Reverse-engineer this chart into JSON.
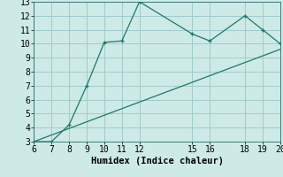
{
  "xlabel": "Humidex (Indice chaleur)",
  "xlim": [
    6,
    20
  ],
  "ylim": [
    3,
    13
  ],
  "xticks": [
    6,
    7,
    8,
    9,
    10,
    11,
    12,
    15,
    16,
    18,
    19,
    20
  ],
  "yticks": [
    3,
    4,
    5,
    6,
    7,
    8,
    9,
    10,
    11,
    12,
    13
  ],
  "curve_x": [
    6,
    7,
    8,
    9,
    10,
    11,
    12,
    15,
    16,
    18,
    19,
    20
  ],
  "curve_y": [
    3.0,
    3.0,
    4.2,
    7.0,
    10.1,
    10.2,
    13.0,
    10.7,
    10.2,
    12.0,
    11.0,
    10.0
  ],
  "line_x": [
    6,
    20
  ],
  "line_y": [
    3.0,
    9.6
  ],
  "line_color": "#1a7a6a",
  "curve_color": "#1a7a6a",
  "bg_color": "#ceeae6",
  "grid_color": "#a0cccc",
  "tick_fontsize": 7,
  "label_fontsize": 7.5
}
